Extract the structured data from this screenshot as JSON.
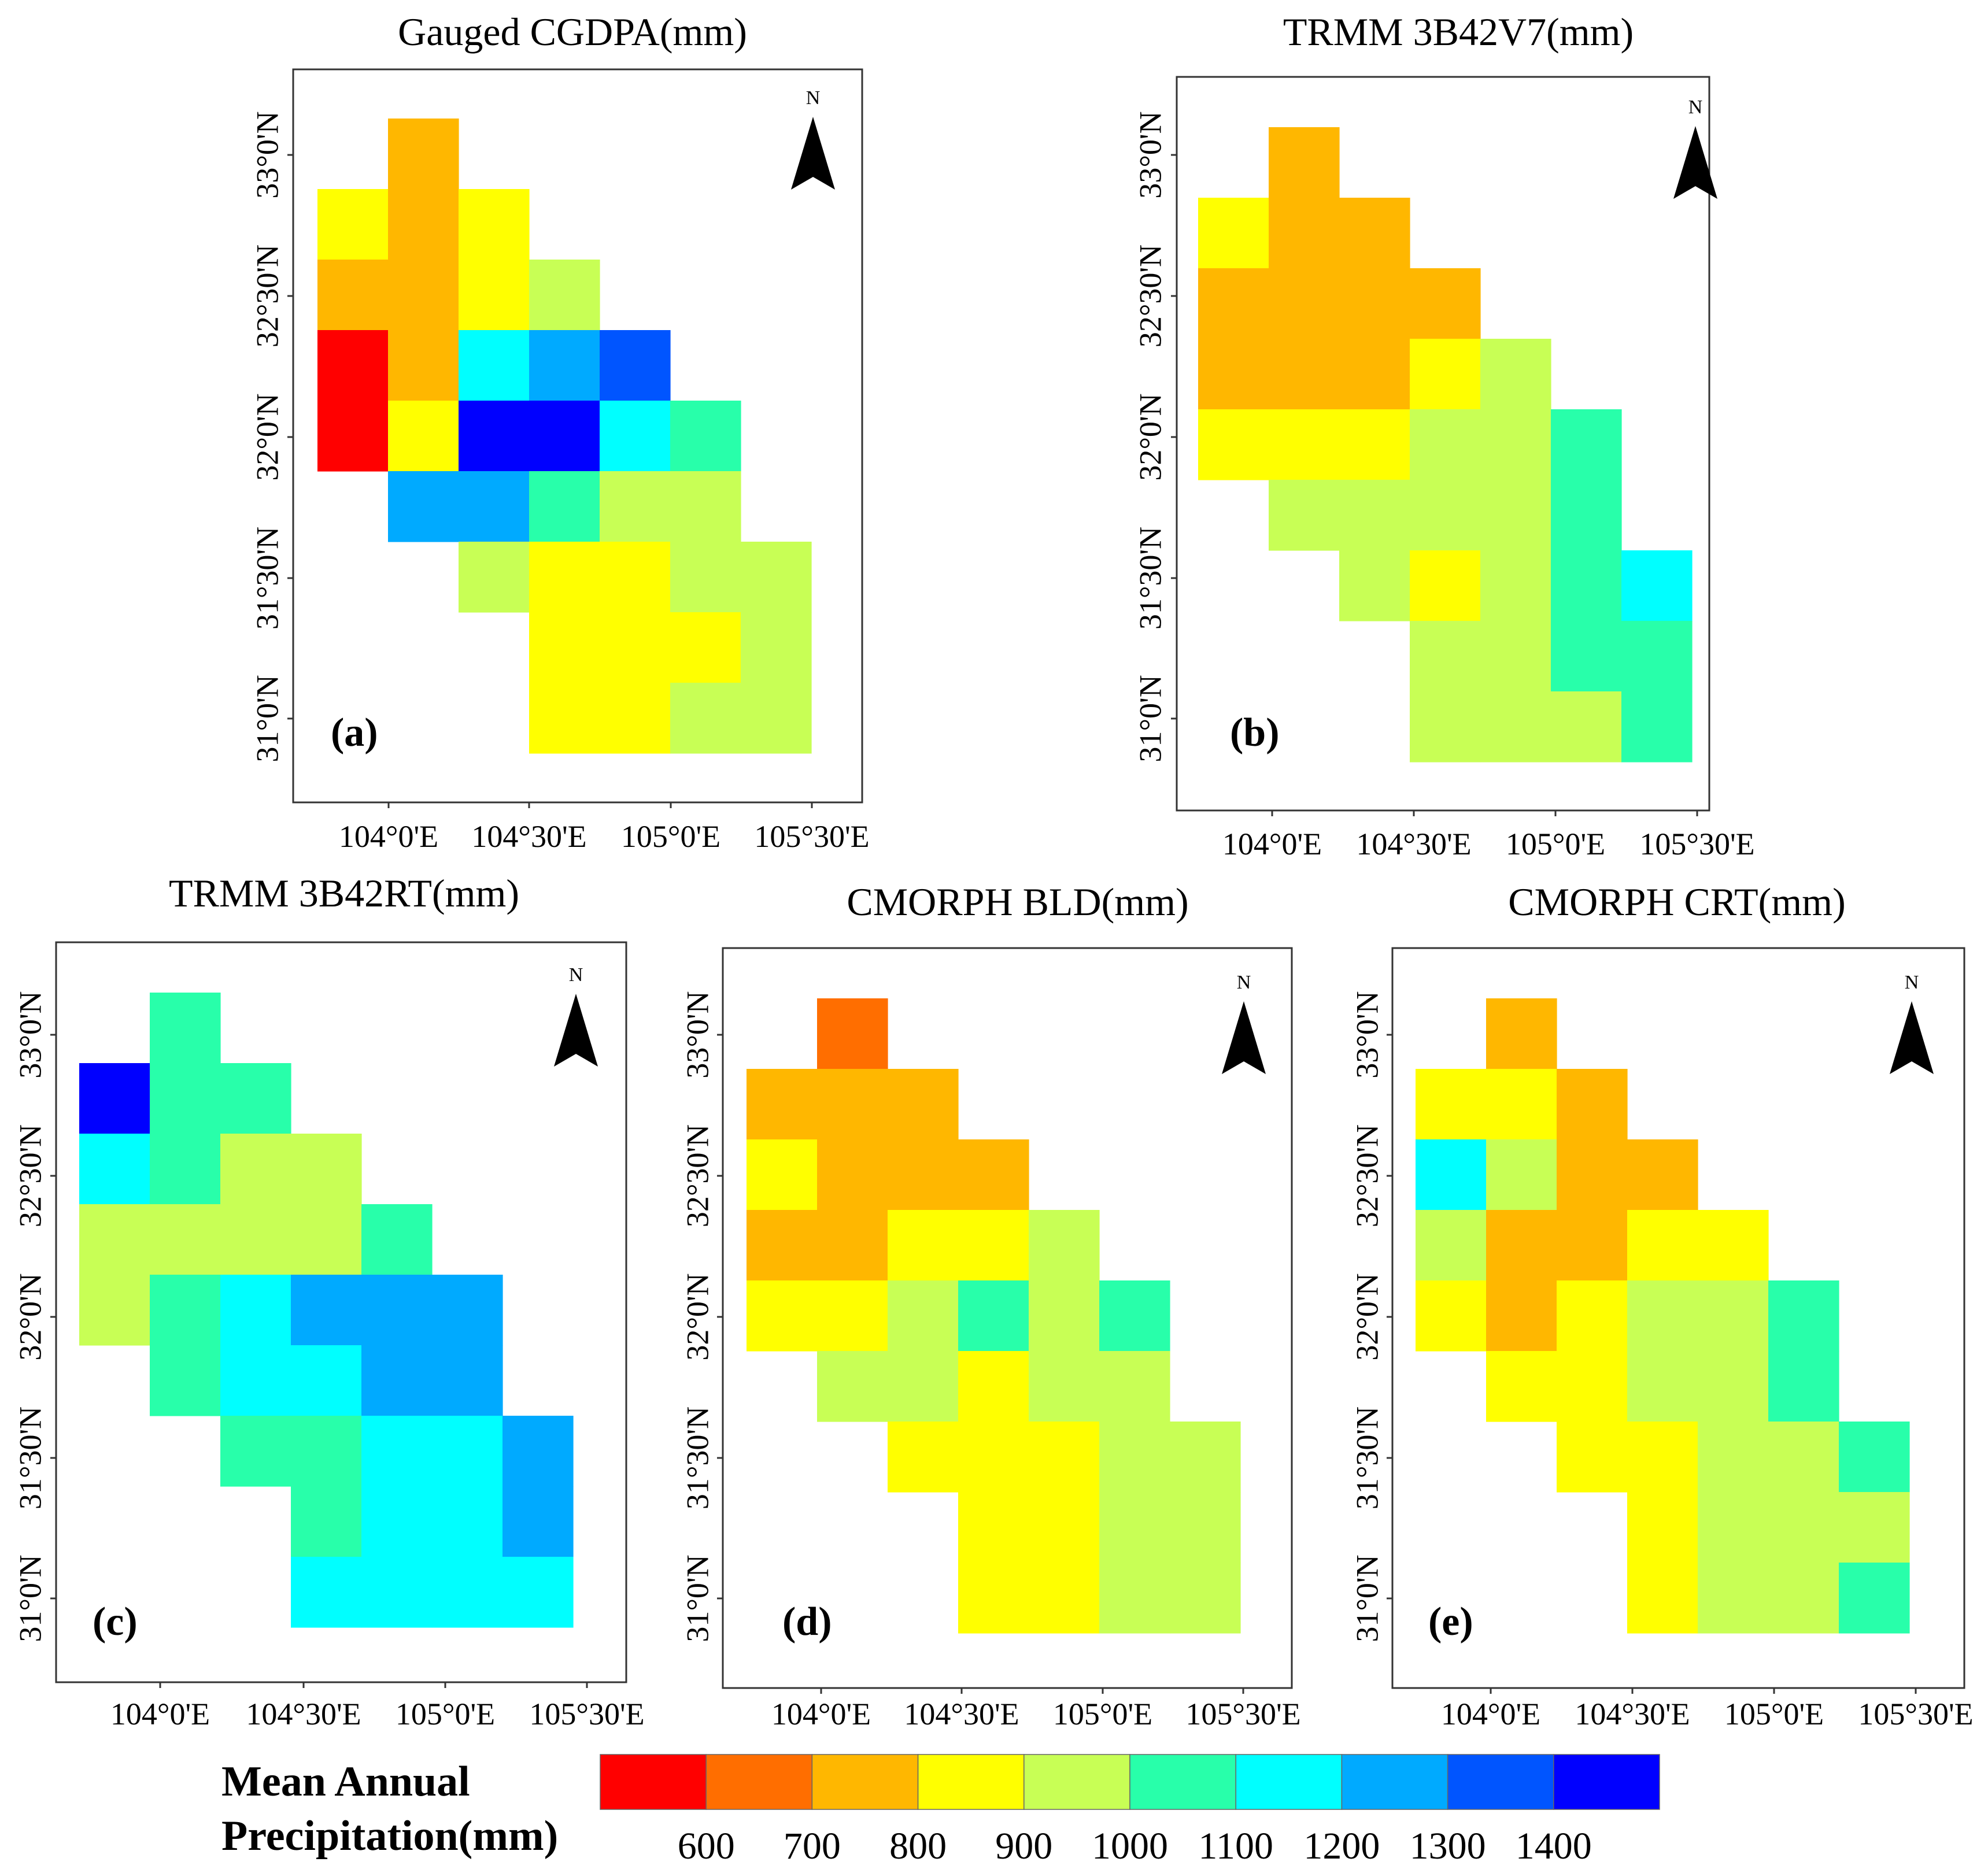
{
  "colors": [
    "#ff0000",
    "#ff6e00",
    "#ffb700",
    "#ffff00",
    "#c8ff55",
    "#28ffaa",
    "#00ffff",
    "#00aaff",
    "#0055ff",
    "#0000ff"
  ],
  "maps": [
    {
      "title": "Gauged CGDPA(mm)",
      "tag": "(a)",
      "xticks": [
        "104°0'E",
        "104°30'E",
        "105°0'E",
        "105°30'E"
      ],
      "yticks": [
        "33°0'N",
        "32°30'N",
        "32°0'N",
        "31°30'N",
        "31°0'N"
      ],
      "north": "N",
      "grid": [
        [
          -1,
          2,
          -1,
          -1,
          -1,
          -1,
          -1
        ],
        [
          3,
          2,
          3,
          -1,
          -1,
          -1,
          -1
        ],
        [
          2,
          2,
          3,
          4,
          -1,
          -1,
          -1
        ],
        [
          0,
          2,
          6,
          7,
          8,
          -1,
          -1
        ],
        [
          0,
          3,
          9,
          9,
          6,
          5,
          -1
        ],
        [
          -1,
          7,
          7,
          5,
          4,
          4,
          -1
        ],
        [
          -1,
          -1,
          4,
          3,
          3,
          4,
          4
        ],
        [
          -1,
          -1,
          -1,
          3,
          3,
          3,
          4
        ],
        [
          -1,
          -1,
          -1,
          3,
          3,
          4,
          4
        ]
      ]
    },
    {
      "title": "TRMM 3B42V7(mm)",
      "tag": "(b)",
      "xticks": [
        "104°0'E",
        "104°30'E",
        "105°0'E",
        "105°30'E"
      ],
      "yticks": [
        "33°0'N",
        "32°30'N",
        "32°0'N",
        "31°30'N",
        "31°0'N"
      ],
      "north": "N",
      "grid": [
        [
          -1,
          2,
          -1,
          -1,
          -1,
          -1,
          -1
        ],
        [
          3,
          2,
          2,
          -1,
          -1,
          -1,
          -1
        ],
        [
          2,
          2,
          2,
          2,
          -1,
          -1,
          -1
        ],
        [
          2,
          2,
          2,
          3,
          4,
          -1,
          -1
        ],
        [
          3,
          3,
          3,
          4,
          4,
          5,
          -1
        ],
        [
          -1,
          4,
          4,
          4,
          4,
          5,
          -1
        ],
        [
          -1,
          -1,
          4,
          3,
          4,
          5,
          6
        ],
        [
          -1,
          -1,
          -1,
          4,
          4,
          5,
          5
        ],
        [
          -1,
          -1,
          -1,
          4,
          4,
          4,
          5
        ]
      ]
    },
    {
      "title": "TRMM 3B42RT(mm)",
      "tag": "(c)",
      "xticks": [
        "104°0'E",
        "104°30'E",
        "105°0'E",
        "105°30'E"
      ],
      "yticks": [
        "33°0'N",
        "32°30'N",
        "32°0'N",
        "31°30'N",
        "31°0'N"
      ],
      "north": "N",
      "grid": [
        [
          -1,
          5,
          -1,
          -1,
          -1,
          -1,
          -1
        ],
        [
          9,
          5,
          5,
          -1,
          -1,
          -1,
          -1
        ],
        [
          6,
          5,
          4,
          4,
          -1,
          -1,
          -1
        ],
        [
          4,
          4,
          4,
          4,
          5,
          -1,
          -1
        ],
        [
          4,
          5,
          6,
          7,
          7,
          7,
          -1
        ],
        [
          -1,
          5,
          6,
          6,
          7,
          7,
          -1
        ],
        [
          -1,
          -1,
          5,
          5,
          6,
          6,
          7
        ],
        [
          -1,
          -1,
          -1,
          5,
          6,
          6,
          7
        ],
        [
          -1,
          -1,
          -1,
          6,
          6,
          6,
          6
        ]
      ]
    },
    {
      "title": "CMORPH BLD(mm)",
      "tag": "(d)",
      "xticks": [
        "104°0'E",
        "104°30'E",
        "105°0'E",
        "105°30'E"
      ],
      "yticks": [
        "33°0'N",
        "32°30'N",
        "32°0'N",
        "31°30'N",
        "31°0'N"
      ],
      "north": "N",
      "grid": [
        [
          -1,
          1,
          -1,
          -1,
          -1,
          -1,
          -1
        ],
        [
          2,
          2,
          2,
          -1,
          -1,
          -1,
          -1
        ],
        [
          3,
          2,
          2,
          2,
          -1,
          -1,
          -1
        ],
        [
          2,
          2,
          3,
          3,
          4,
          -1,
          -1
        ],
        [
          3,
          3,
          4,
          5,
          4,
          5,
          -1
        ],
        [
          -1,
          4,
          4,
          3,
          4,
          4,
          -1
        ],
        [
          -1,
          -1,
          3,
          3,
          3,
          4,
          4
        ],
        [
          -1,
          -1,
          -1,
          3,
          3,
          4,
          4
        ],
        [
          -1,
          -1,
          -1,
          3,
          3,
          4,
          4
        ]
      ]
    },
    {
      "title": "CMORPH CRT(mm)",
      "tag": "(e)",
      "xticks": [
        "104°0'E",
        "104°30'E",
        "105°0'E",
        "105°30'E"
      ],
      "yticks": [
        "33°0'N",
        "32°30'N",
        "32°0'N",
        "31°30'N",
        "31°0'N"
      ],
      "north": "N",
      "grid": [
        [
          -1,
          2,
          -1,
          -1,
          -1,
          -1,
          -1
        ],
        [
          3,
          3,
          2,
          -1,
          -1,
          -1,
          -1
        ],
        [
          6,
          4,
          2,
          2,
          -1,
          -1,
          -1
        ],
        [
          4,
          2,
          2,
          3,
          3,
          -1,
          -1
        ],
        [
          3,
          2,
          3,
          4,
          4,
          5,
          -1
        ],
        [
          -1,
          3,
          3,
          4,
          4,
          5,
          -1
        ],
        [
          -1,
          -1,
          3,
          3,
          4,
          4,
          5
        ],
        [
          -1,
          -1,
          -1,
          3,
          4,
          4,
          4
        ],
        [
          -1,
          -1,
          -1,
          3,
          4,
          4,
          5
        ]
      ]
    }
  ],
  "legend": {
    "title_line1": "Mean Annual",
    "title_line2": "Precipitation(mm)",
    "labels": [
      "600",
      "700",
      "800",
      "900",
      "1000",
      "1100",
      "1200",
      "1300",
      "1400"
    ]
  }
}
